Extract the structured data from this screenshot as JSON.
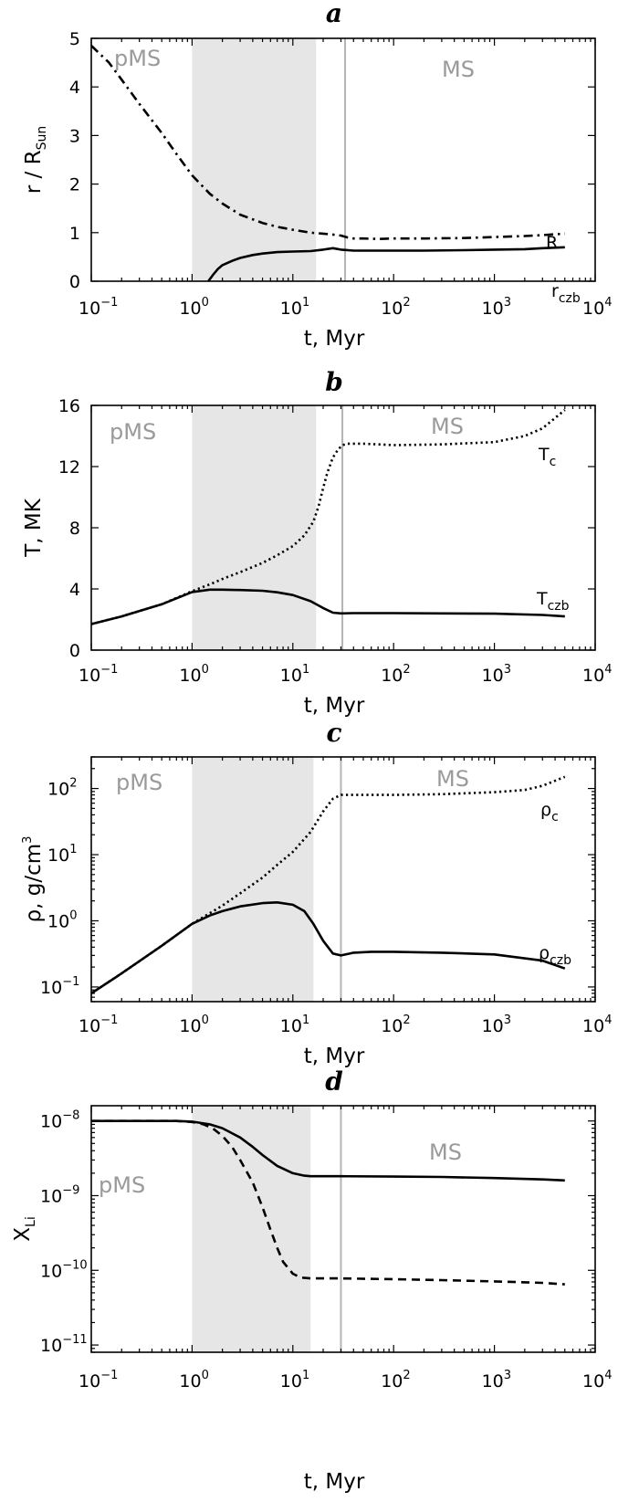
{
  "chart_data": [
    {
      "panel": "a",
      "type": "line",
      "xlabel": "t, Myr",
      "ylabel": "r / R",
      "ylabel_sub": "Sun",
      "xscale": "log",
      "xlim": [
        0.1,
        10000
      ],
      "ylim": [
        0,
        5
      ],
      "xticks": [
        0.1,
        1,
        10,
        100,
        1000,
        10000
      ],
      "yticks": [
        0,
        1,
        2,
        3,
        4,
        5
      ],
      "yscale": "linear",
      "shaded_region": [
        1.0,
        17
      ],
      "vertical_line": 33,
      "phase_labels": [
        "pMS",
        "MS"
      ],
      "series": [
        {
          "name": "R",
          "name_sub": "",
          "style": "dashdot",
          "x": [
            0.1,
            0.15,
            0.2,
            0.3,
            0.5,
            0.7,
            1.0,
            1.5,
            2,
            3,
            5,
            7,
            10,
            15,
            20,
            25,
            30,
            35,
            40,
            50,
            70,
            100,
            200,
            500,
            1000,
            2000,
            3000,
            5000
          ],
          "y": [
            4.85,
            4.5,
            4.15,
            3.65,
            3.05,
            2.62,
            2.18,
            1.8,
            1.6,
            1.37,
            1.2,
            1.12,
            1.06,
            1.0,
            0.98,
            0.96,
            0.94,
            0.9,
            0.88,
            0.88,
            0.87,
            0.88,
            0.88,
            0.89,
            0.91,
            0.93,
            0.95,
            0.98
          ]
        },
        {
          "name": "r",
          "name_sub": "czb",
          "style": "solid",
          "x": [
            1.45,
            1.6,
            1.8,
            2,
            2.5,
            3,
            4,
            5,
            7,
            10,
            15,
            20,
            25,
            30,
            40,
            60,
            100,
            200,
            500,
            1000,
            2000,
            3000,
            5000
          ],
          "y": [
            0.0,
            0.12,
            0.25,
            0.33,
            0.42,
            0.48,
            0.54,
            0.57,
            0.6,
            0.61,
            0.62,
            0.65,
            0.68,
            0.65,
            0.63,
            0.63,
            0.63,
            0.63,
            0.64,
            0.65,
            0.66,
            0.68,
            0.7
          ]
        }
      ]
    },
    {
      "panel": "b",
      "type": "line",
      "xlabel": "t, Myr",
      "ylabel": "T, MK",
      "ylabel_sub": "",
      "xscale": "log",
      "xlim": [
        0.1,
        10000
      ],
      "ylim": [
        0,
        16
      ],
      "xticks": [
        0.1,
        1,
        10,
        100,
        1000,
        10000
      ],
      "yticks": [
        0,
        4,
        8,
        12,
        16
      ],
      "yscale": "linear",
      "shaded_region": [
        1.0,
        17
      ],
      "vertical_line": 31,
      "phase_labels": [
        "pMS",
        "MS"
      ],
      "series": [
        {
          "name": "T",
          "name_sub": "c",
          "style": "dotted",
          "x": [
            0.1,
            0.2,
            0.5,
            1.0,
            1.5,
            2,
            3,
            5,
            7,
            10,
            13,
            16,
            18,
            20,
            22,
            25,
            28,
            31,
            35,
            50,
            100,
            300,
            1000,
            2000,
            3000,
            5000
          ],
          "y": [
            1.7,
            2.2,
            3.0,
            3.85,
            4.3,
            4.65,
            5.1,
            5.7,
            6.2,
            6.8,
            7.5,
            8.4,
            9.4,
            10.6,
            11.6,
            12.6,
            13.1,
            13.4,
            13.5,
            13.5,
            13.4,
            13.45,
            13.6,
            14.0,
            14.5,
            15.7
          ]
        },
        {
          "name": "T",
          "name_sub": "czb",
          "style": "solid",
          "x": [
            0.1,
            0.2,
            0.5,
            1.0,
            1.5,
            2,
            3,
            5,
            7,
            10,
            15,
            20,
            25,
            30,
            40,
            100,
            300,
            1000,
            3000,
            5000
          ],
          "y": [
            1.7,
            2.2,
            3.0,
            3.8,
            3.95,
            3.95,
            3.93,
            3.88,
            3.78,
            3.6,
            3.2,
            2.75,
            2.45,
            2.4,
            2.42,
            2.42,
            2.4,
            2.38,
            2.3,
            2.2
          ]
        }
      ]
    },
    {
      "panel": "c",
      "type": "line",
      "xlabel": "t, Myr",
      "ylabel": "ρ, g/cm",
      "ylabel_sup": "3",
      "xscale": "log",
      "xlim": [
        0.1,
        10000
      ],
      "ylim": [
        0.06,
        300
      ],
      "xticks": [
        0.1,
        1,
        10,
        100,
        1000,
        10000
      ],
      "yticks": [
        0.1,
        1,
        10,
        100
      ],
      "yscale": "log",
      "shaded_region": [
        1.0,
        16
      ],
      "vertical_line": 30,
      "phase_labels": [
        "pMS",
        "MS"
      ],
      "series": [
        {
          "name": "ρ",
          "name_sub": "c",
          "style": "dotted",
          "x": [
            0.1,
            0.2,
            0.5,
            1.0,
            1.5,
            2,
            3,
            5,
            7,
            10,
            15,
            20,
            25,
            30,
            40,
            100,
            300,
            1000,
            2000,
            3000,
            5000
          ],
          "y": [
            0.08,
            0.16,
            0.42,
            0.9,
            1.3,
            1.7,
            2.6,
            4.5,
            7.0,
            11,
            22,
            45,
            70,
            80,
            80,
            80,
            82,
            88,
            95,
            110,
            150
          ]
        },
        {
          "name": "ρ",
          "name_sub": "czb",
          "style": "solid",
          "x": [
            0.1,
            0.2,
            0.5,
            1.0,
            1.5,
            2,
            3,
            5,
            7,
            10,
            13,
            16,
            20,
            25,
            30,
            40,
            60,
            100,
            300,
            1000,
            3000,
            5000
          ],
          "y": [
            0.08,
            0.16,
            0.42,
            0.9,
            1.2,
            1.4,
            1.65,
            1.85,
            1.9,
            1.75,
            1.4,
            0.9,
            0.5,
            0.32,
            0.3,
            0.33,
            0.34,
            0.34,
            0.33,
            0.31,
            0.25,
            0.19
          ]
        }
      ]
    },
    {
      "panel": "d",
      "type": "line",
      "xlabel": "t, Myr",
      "ylabel": "X",
      "ylabel_sub": "Li",
      "xscale": "log",
      "xlim": [
        0.1,
        10000
      ],
      "ylim": [
        8e-12,
        1.6e-08
      ],
      "xticks": [
        0.1,
        1,
        10,
        100,
        1000,
        10000
      ],
      "yticks": [
        1e-11,
        1e-10,
        1e-09,
        1e-08
      ],
      "yscale": "log",
      "shaded_region": [
        1.0,
        15
      ],
      "vertical_line": 30,
      "phase_labels": [
        "pMS",
        "MS"
      ],
      "series": [
        {
          "name": "",
          "style": "solid",
          "x": [
            0.1,
            0.3,
            0.7,
            1.0,
            1.5,
            2,
            3,
            4,
            5,
            7,
            10,
            13,
            15,
            20,
            30,
            100,
            300,
            1000,
            3000,
            5000
          ],
          "y": [
            1e-08,
            1e-08,
            1e-08,
            9.8e-09,
            9e-09,
            8e-09,
            6e-09,
            4.5e-09,
            3.5e-09,
            2.5e-09,
            2e-09,
            1.85e-09,
            1.82e-09,
            1.82e-09,
            1.82e-09,
            1.8e-09,
            1.78e-09,
            1.72e-09,
            1.65e-09,
            1.6e-09
          ]
        },
        {
          "name": "",
          "style": "dashed",
          "x": [
            0.1,
            0.3,
            0.7,
            1.0,
            1.3,
            1.6,
            2,
            2.5,
            3,
            4,
            5,
            6,
            7,
            8,
            10,
            12,
            15,
            20,
            30,
            100,
            300,
            1000,
            3000,
            5000
          ],
          "y": [
            1e-08,
            1e-08,
            1e-08,
            9.7e-09,
            9e-09,
            8e-09,
            6.3e-09,
            4.5e-09,
            3e-09,
            1.5e-09,
            7e-10,
            3.5e-10,
            2e-10,
            1.3e-10,
            9e-11,
            8e-11,
            7.8e-11,
            7.8e-11,
            7.8e-11,
            7.6e-11,
            7.4e-11,
            7.1e-11,
            6.8e-11,
            6.5e-11
          ]
        }
      ]
    }
  ]
}
